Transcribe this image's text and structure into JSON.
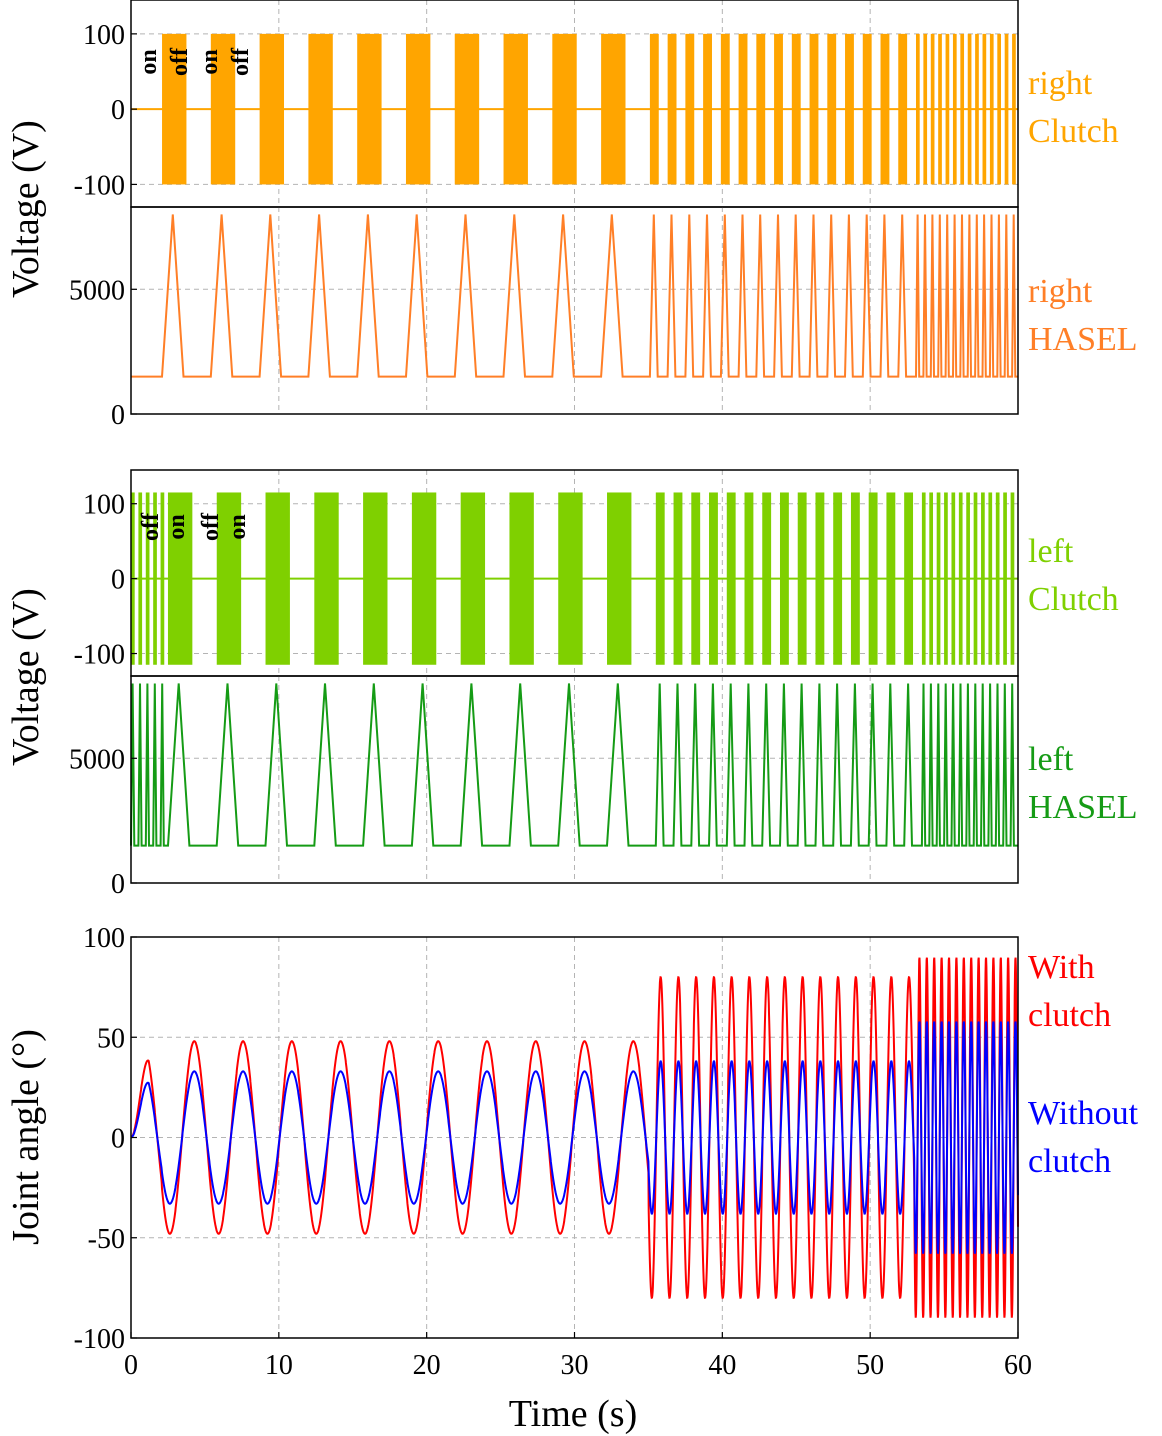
{
  "chart_data": [
    {
      "type": "line",
      "name": "right-clutch",
      "ylabel": "",
      "ylim": [
        -130,
        145
      ],
      "xlim": [
        0,
        60
      ],
      "yticks": [
        -100,
        0,
        100
      ],
      "ytick_labels": [
        "-100",
        "0",
        "100"
      ],
      "grid": true,
      "color": "#FFA500",
      "label_lines": [
        "right",
        "Clutch"
      ],
      "series": [
        {
          "name": "right Clutch",
          "amplitude": 100,
          "description": "square-wave carrier bursts gated on/off, inverse to left clutch"
        }
      ],
      "annotations": [
        "on",
        "off",
        "on",
        "off"
      ]
    },
    {
      "type": "line",
      "name": "right-hasel",
      "ylabel": "",
      "ylim": [
        0,
        8300
      ],
      "xlim": [
        0,
        60
      ],
      "yticks": [
        0,
        5000
      ],
      "ytick_labels": [
        "0",
        "5000"
      ],
      "grid": true,
      "color": "#FF7F27",
      "label_lines": [
        "right",
        "HASEL"
      ],
      "series": [
        {
          "name": "right HASEL",
          "min": 1500,
          "max": 8000,
          "description": "triangular pulses starting at t=2.1 s"
        }
      ]
    },
    {
      "type": "line",
      "name": "left-clutch",
      "ylabel": "",
      "ylim": [
        -130,
        145
      ],
      "xlim": [
        0,
        60
      ],
      "yticks": [
        -100,
        0,
        100
      ],
      "ytick_labels": [
        "-100",
        "0",
        "100"
      ],
      "grid": true,
      "color": "#7FD000",
      "label_lines": [
        "left",
        "Clutch"
      ],
      "series": [
        {
          "name": "left Clutch",
          "amplitude": 115,
          "description": "square-wave carrier bursts gated on/off"
        }
      ],
      "annotations": [
        "off",
        "on",
        "off",
        "on"
      ]
    },
    {
      "type": "line",
      "name": "left-hasel",
      "ylabel": "",
      "ylim": [
        0,
        8300
      ],
      "xlim": [
        0,
        60
      ],
      "yticks": [
        0,
        5000
      ],
      "ytick_labels": [
        "0",
        "5000"
      ],
      "grid": true,
      "color": "#159B15",
      "label_lines": [
        "left",
        "HASEL"
      ],
      "series": [
        {
          "name": "left HASEL",
          "min": 1500,
          "max": 8000,
          "description": "triangular pulses starting at t=0 s"
        }
      ]
    },
    {
      "type": "line",
      "name": "joint-angle",
      "ylabel": "Joint angle (°)",
      "xlabel": "Time (s)",
      "ylim": [
        -100,
        100
      ],
      "xlim": [
        0,
        60
      ],
      "xticks": [
        0,
        10,
        20,
        30,
        40,
        50,
        60
      ],
      "xtick_labels": [
        "0",
        "10",
        "20",
        "30",
        "40",
        "50",
        "60"
      ],
      "yticks": [
        -100,
        -50,
        0,
        50,
        100
      ],
      "ytick_labels": [
        "-100",
        "-50",
        "0",
        "50",
        "100"
      ],
      "grid": true,
      "series": [
        {
          "name": "With clutch",
          "color": "#FF0000",
          "label_lines": [
            "With",
            "clutch"
          ],
          "amplitude_by_segment": [
            45,
            48,
            80,
            90
          ]
        },
        {
          "name": "Without clutch",
          "color": "#0000FF",
          "label_lines": [
            "Without",
            "clutch"
          ],
          "amplitude_by_segment": [
            32,
            33,
            38,
            58
          ]
        }
      ]
    }
  ],
  "shared": {
    "voltage_ylabel": "Voltage (V)",
    "xlim": [
      0,
      60
    ],
    "xticks": [
      0,
      10,
      20,
      30,
      40,
      50,
      60
    ],
    "cycle_segments": [
      {
        "t_start": 0,
        "t_end": 2.1,
        "period": 0,
        "note": "left starts alone"
      },
      {
        "t_start": 2.1,
        "t_end": 35.0,
        "period": 3.3
      },
      {
        "t_start": 35.0,
        "t_end": 53.0,
        "period": 1.2
      },
      {
        "t_start": 53.0,
        "t_end": 60.0,
        "period": 0.5
      }
    ]
  }
}
